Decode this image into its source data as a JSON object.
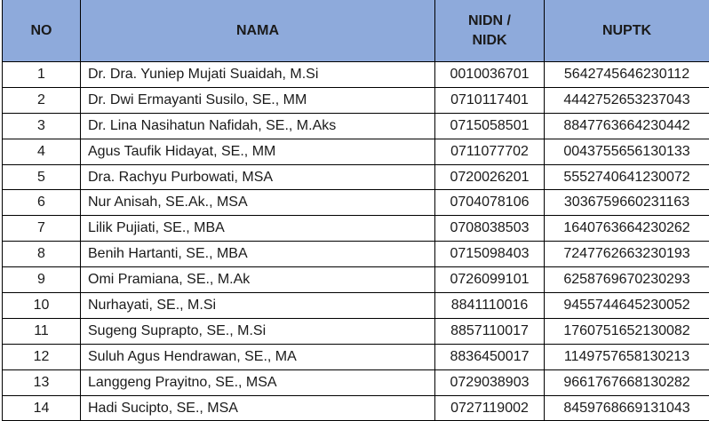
{
  "header": {
    "no": "NO",
    "nama": "NAMA",
    "nidn": "NIDN / NIDK",
    "nuptk": "NUPTK",
    "color": "#8eaadb"
  },
  "rows": [
    {
      "no": "1",
      "nama": "Dr. Dra. Yuniep Mujati Suaidah, M.Si",
      "nidn": "0010036701",
      "nuptk": "5642745646230112"
    },
    {
      "no": "2",
      "nama": "Dr. Dwi Ermayanti Susilo, SE., MM",
      "nidn": "0710117401",
      "nuptk": "4442752653237043"
    },
    {
      "no": "3",
      "nama": "Dr. Lina Nasihatun Nafidah, SE., M.Aks",
      "nidn": "0715058501",
      "nuptk": "8847763664230442"
    },
    {
      "no": "4",
      "nama": "Agus Taufik Hidayat, SE., MM",
      "nidn": "0711077702",
      "nuptk": "0043755656130133"
    },
    {
      "no": "5",
      "nama": "Dra. Rachyu Purbowati, MSA",
      "nidn": "0720026201",
      "nuptk": "5552740641230072"
    },
    {
      "no": "6",
      "nama": "Nur Anisah, SE.Ak., MSA",
      "nidn": "0704078106",
      "nuptk": "3036759660231163"
    },
    {
      "no": "7",
      "nama": "Lilik Pujiati, SE., MBA",
      "nidn": "0708038503",
      "nuptk": "1640763664230262"
    },
    {
      "no": "8",
      "nama": "Benih Hartanti, SE., MBA",
      "nidn": "0715098403",
      "nuptk": "7247762663230193"
    },
    {
      "no": "9",
      "nama": "Omi Pramiana, SE., M.Ak",
      "nidn": "0726099101",
      "nuptk": "6258769670230293"
    },
    {
      "no": "10",
      "nama": "Nurhayati, SE., M.Si",
      "nidn": "8841110016",
      "nuptk": "9455744645230052"
    },
    {
      "no": "11",
      "nama": "Sugeng Suprapto, SE., M.Si",
      "nidn": "8857110017",
      "nuptk": "1760751652130082"
    },
    {
      "no": "12",
      "nama": "Suluh Agus Hendrawan, SE., MA",
      "nidn": "8836450017",
      "nuptk": "1149757658130213"
    },
    {
      "no": "13",
      "nama": "Langgeng Prayitno, SE., MSA",
      "nidn": "0729038903",
      "nuptk": "9661767668130282"
    },
    {
      "no": "14",
      "nama": "Hadi Sucipto, SE., MSA",
      "nidn": "0727119002",
      "nuptk": "8459768669131043"
    }
  ]
}
